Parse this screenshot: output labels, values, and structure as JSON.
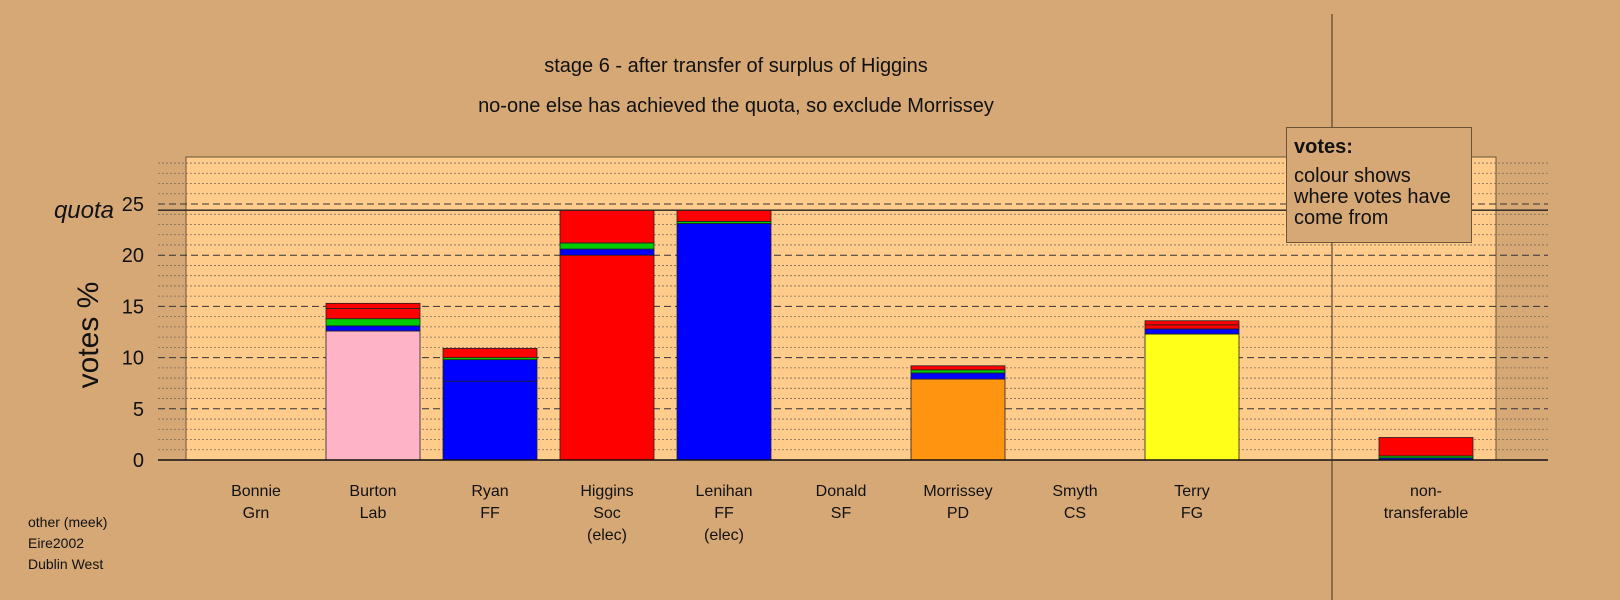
{
  "chart_data": {
    "type": "bar",
    "stacked": true,
    "title": "stage 6 - after transfer of surplus of Higgins",
    "subtitle": "no-one else has achieved the quota, so exclude Morrissey",
    "ylabel": "votes %",
    "quota_label": "quota",
    "quota_value": 24.4,
    "ylim": [
      0,
      29.6
    ],
    "yticks": [
      0,
      5,
      10,
      15,
      20,
      25
    ],
    "grid": true,
    "candidates": [
      {
        "line1": "Bonnie",
        "line2": "Grn",
        "line3": "",
        "segments": []
      },
      {
        "line1": "Burton",
        "line2": "Lab",
        "line3": "",
        "segments": [
          {
            "color": "#ffb3c6",
            "value": 12.6
          },
          {
            "color": "#0000ff",
            "value": 0.5
          },
          {
            "color": "#00cc00",
            "value": 0.7
          },
          {
            "color": "#ff0000",
            "value": 1.0
          },
          {
            "color": "#ff0000",
            "value": 0.5
          }
        ]
      },
      {
        "line1": "Ryan",
        "line2": "FF",
        "line3": "",
        "segments": [
          {
            "color": "#0000ff",
            "value": 7.7
          },
          {
            "color": "#0000ff",
            "value": 2.1
          },
          {
            "color": "#00cc00",
            "value": 0.2
          },
          {
            "color": "#ff0000",
            "value": 0.9
          }
        ]
      },
      {
        "line1": "Higgins",
        "line2": "Soc",
        "line3": "(elec)",
        "segments": [
          {
            "color": "#ff0000",
            "value": 20.0
          },
          {
            "color": "#0000ff",
            "value": 0.6
          },
          {
            "color": "#00cc00",
            "value": 0.6
          },
          {
            "color": "#ff0000",
            "value": 3.2
          }
        ]
      },
      {
        "line1": "Lenihan",
        "line2": "FF",
        "line3": "(elec)",
        "segments": [
          {
            "color": "#0000ff",
            "value": 23.1
          },
          {
            "color": "#00cc00",
            "value": 0.2
          },
          {
            "color": "#ff0000",
            "value": 1.1
          }
        ]
      },
      {
        "line1": "Donald",
        "line2": "SF",
        "line3": "",
        "segments": []
      },
      {
        "line1": "Morrissey",
        "line2": "PD",
        "line3": "",
        "segments": [
          {
            "color": "#ff9410",
            "value": 7.9
          },
          {
            "color": "#0000ff",
            "value": 0.6
          },
          {
            "color": "#00cc00",
            "value": 0.3
          },
          {
            "color": "#ff0000",
            "value": 0.4
          }
        ]
      },
      {
        "line1": "Smyth",
        "line2": "CS",
        "line3": "",
        "segments": []
      },
      {
        "line1": "Terry",
        "line2": "FG",
        "line3": "",
        "segments": [
          {
            "color": "#ffff1a",
            "value": 12.3
          },
          {
            "color": "#0000ff",
            "value": 0.5
          },
          {
            "color": "#ff0000",
            "value": 0.4
          },
          {
            "color": "#ff0000",
            "value": 0.4
          }
        ]
      },
      {
        "line1": "non-",
        "line2": "transferable",
        "line3": "",
        "nontransferable": true,
        "segments": [
          {
            "color": "#0000ff",
            "value": 0.2
          },
          {
            "color": "#00cc00",
            "value": 0.2
          },
          {
            "color": "#ff0000",
            "value": 1.8
          }
        ]
      }
    ]
  },
  "legend": {
    "title": "votes:",
    "body": "colour shows where votes have come from"
  },
  "footer": {
    "line1": "other (meek)",
    "line2": "Eire2002",
    "line3": "Dublin West"
  }
}
